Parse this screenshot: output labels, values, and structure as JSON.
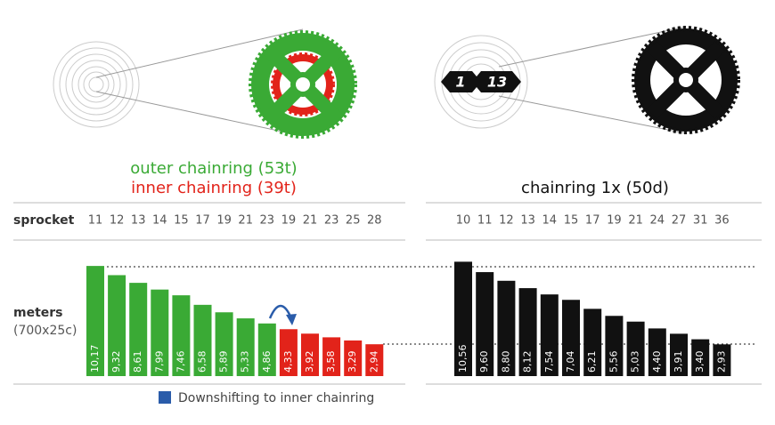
{
  "chart_data": [
    {
      "type": "bar",
      "x_label": "sprocket",
      "y_label": "meters",
      "y_sublabel": "(700x25c)",
      "categories": [
        "11",
        "12",
        "13",
        "14",
        "15",
        "17",
        "19",
        "21",
        "23",
        "19",
        "21",
        "23",
        "25",
        "28"
      ],
      "series": [
        {
          "name": "outer chainring (53t)",
          "color": "#3aaa35",
          "values": [
            10.17,
            9.32,
            8.61,
            7.99,
            7.46,
            6.58,
            5.89,
            5.33,
            4.86,
            null,
            null,
            null,
            null,
            null
          ],
          "value_labels": [
            "10,17",
            "9,32",
            "8,61",
            "7,99",
            "7,46",
            "6,58",
            "5,89",
            "5,33",
            "4,86",
            null,
            null,
            null,
            null,
            null
          ]
        },
        {
          "name": "inner chainring (39t)",
          "color": "#e2231a",
          "values": [
            null,
            null,
            null,
            null,
            null,
            null,
            null,
            null,
            null,
            4.33,
            3.92,
            3.58,
            3.29,
            2.94
          ],
          "value_labels": [
            null,
            null,
            null,
            null,
            null,
            null,
            null,
            null,
            null,
            "4,33",
            "3,92",
            "3,58",
            "3,29",
            "2,94"
          ]
        }
      ],
      "annotation": "Downshifting to inner chainring",
      "annotation_color": "#2a5caa",
      "ylim": [
        0,
        11
      ]
    },
    {
      "type": "bar",
      "title": "chainring 1x (50d)",
      "categories": [
        "10",
        "11",
        "12",
        "13",
        "14",
        "15",
        "17",
        "19",
        "21",
        "24",
        "27",
        "31",
        "36"
      ],
      "series": [
        {
          "name": null,
          "color": "#111111",
          "values": [
            10.56,
            9.6,
            8.8,
            8.12,
            7.54,
            7.04,
            6.21,
            5.56,
            5.03,
            4.4,
            3.91,
            3.4,
            2.93
          ],
          "value_labels": [
            "10,56",
            "9,60",
            "8,80",
            "8,12",
            "7,54",
            "7,04",
            "6,21",
            "5,56",
            "5,03",
            "4,40",
            "3,91",
            "3,40",
            "2,93"
          ]
        }
      ],
      "ylim": [
        0,
        11
      ]
    }
  ]
}
